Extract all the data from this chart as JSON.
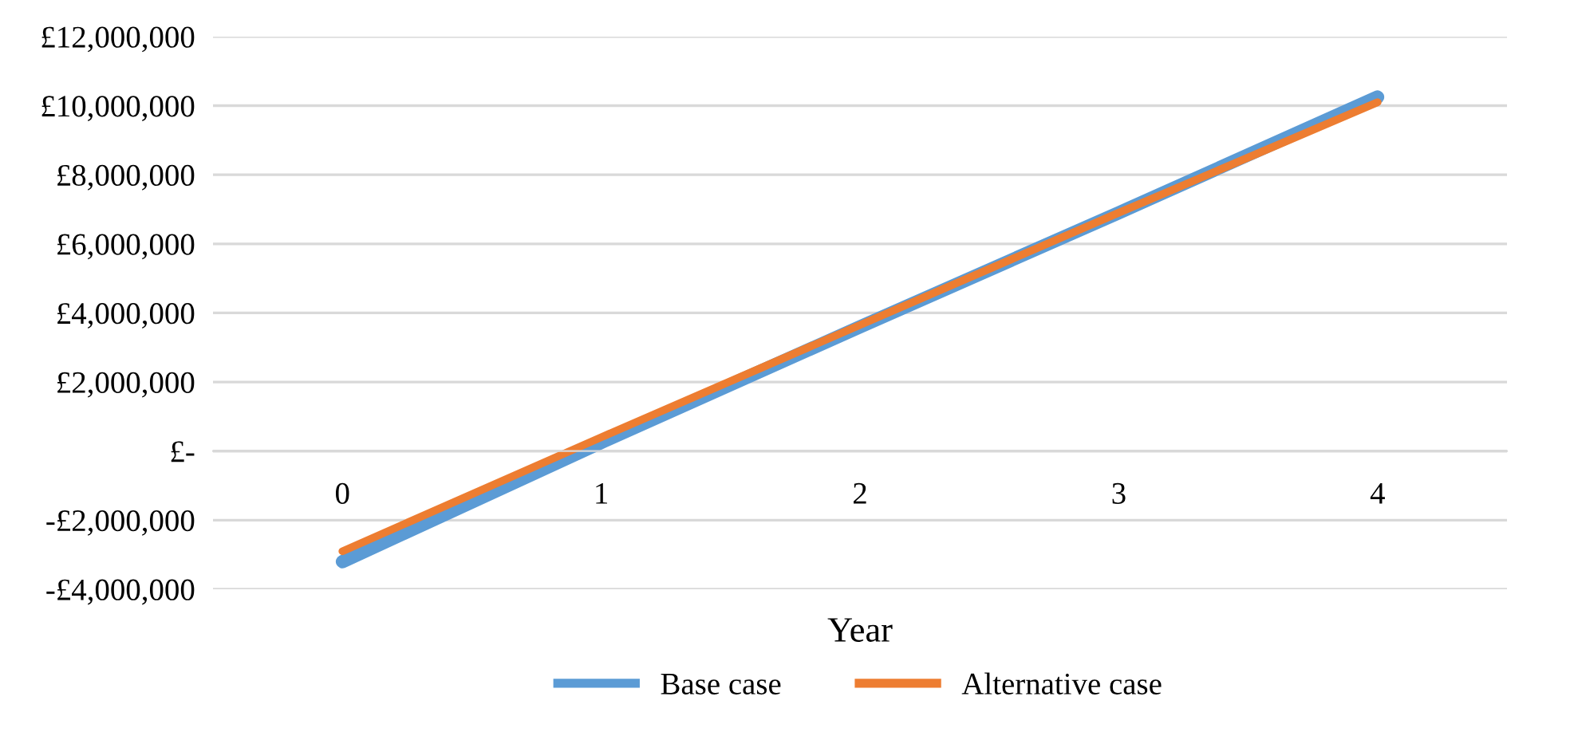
{
  "chart_data": {
    "type": "line",
    "xlabel": "Year",
    "categories": [
      "0",
      "1",
      "2",
      "3",
      "4"
    ],
    "series": [
      {
        "name": "Base case",
        "color": "#5b9bd5",
        "values": [
          -3200000,
          250000,
          3600000,
          6900000,
          10250000
        ]
      },
      {
        "name": "Alternative case",
        "color": "#ed7d31",
        "values": [
          -2900000,
          400000,
          3650000,
          6900000,
          10100000
        ]
      }
    ],
    "ylim": [
      -4000000,
      12000000
    ],
    "yticks": [
      {
        "value": -4000000,
        "label": "-£4,000,000"
      },
      {
        "value": -2000000,
        "label": "-£2,000,000"
      },
      {
        "value": 0,
        "label": "£-"
      },
      {
        "value": 2000000,
        "label": "£2,000,000"
      },
      {
        "value": 4000000,
        "label": "£4,000,000"
      },
      {
        "value": 6000000,
        "label": "£6,000,000"
      },
      {
        "value": 8000000,
        "label": "£8,000,000"
      },
      {
        "value": 10000000,
        "label": "£10,000,000"
      },
      {
        "value": 12000000,
        "label": "£12,000,000"
      }
    ],
    "grid": "y",
    "legend": "bottom",
    "marker": "none",
    "line_style": "solid"
  }
}
